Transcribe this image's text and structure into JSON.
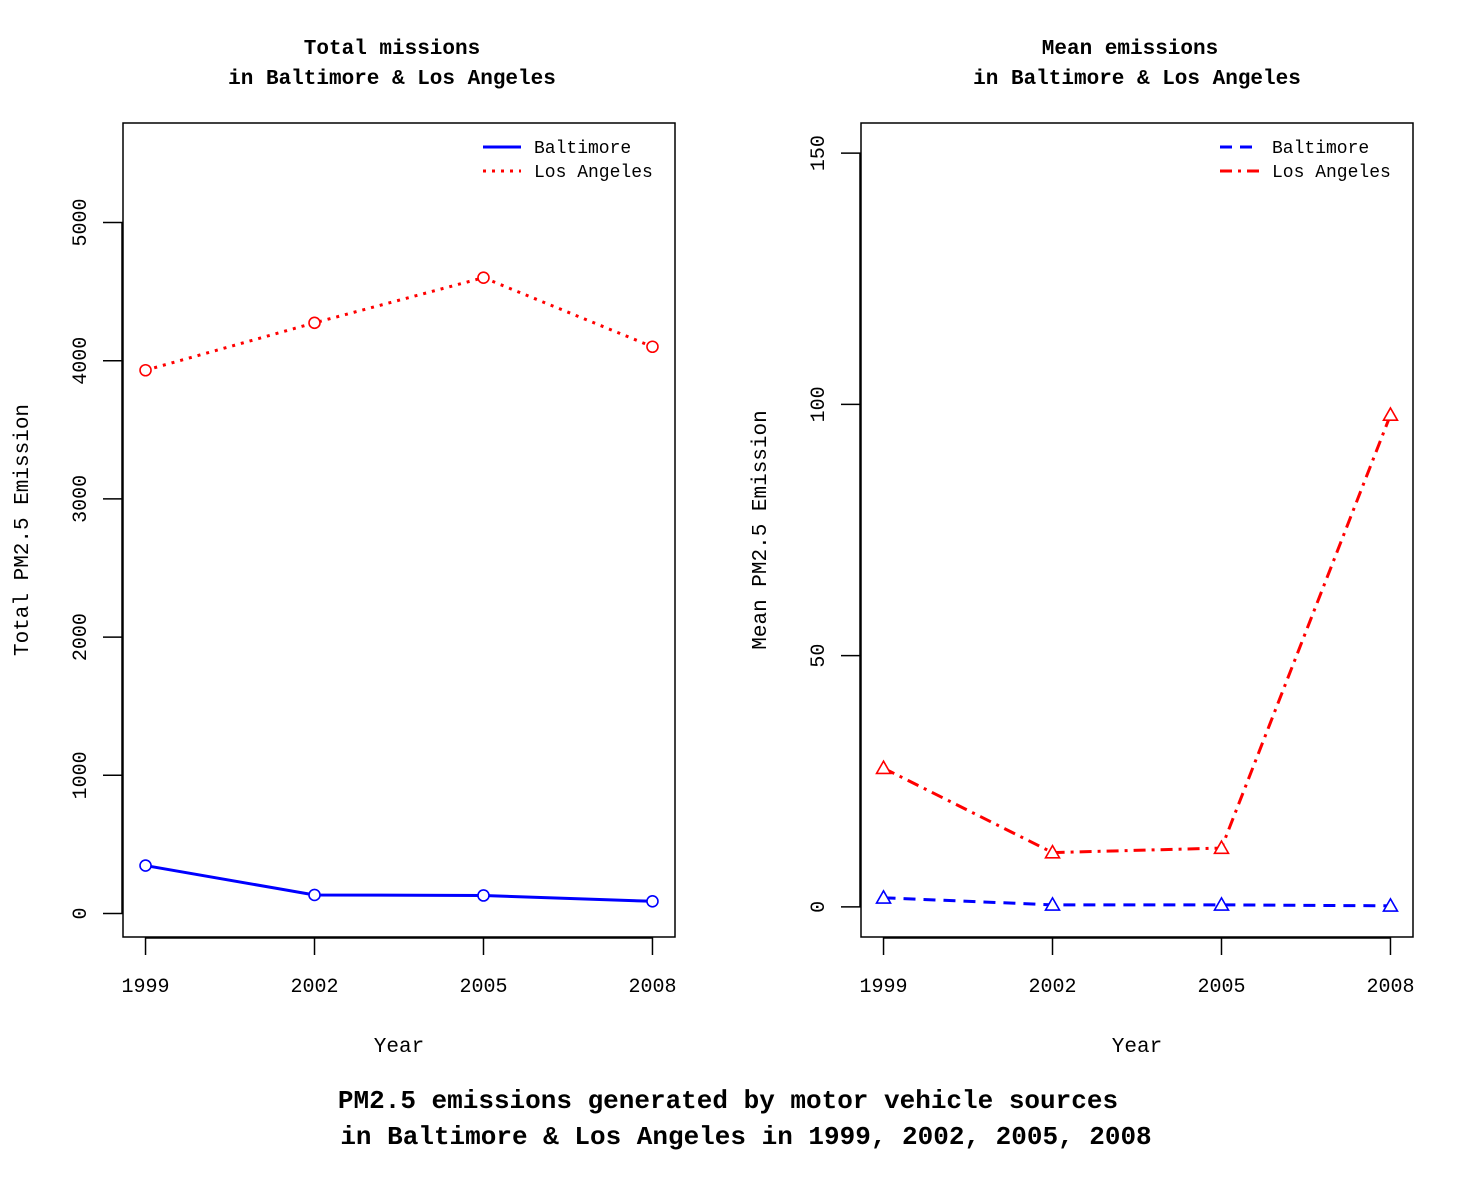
{
  "suptitle": {
    "line1": "PM2.5 emissions generated by motor vehicle sources",
    "line2": "in Baltimore & Los Angeles in 1999, 2002, 2005, 2008"
  },
  "chart_data": [
    {
      "type": "line",
      "title_line1": "Total missions",
      "title_line2": "in Baltimore & Los Angeles",
      "xlabel": "Year",
      "ylabel": "Total PM2.5 Emission",
      "x": [
        1999,
        2002,
        2005,
        2008
      ],
      "x_tick_labels": [
        "1999",
        "2002",
        "2005",
        "2008"
      ],
      "xlim": [
        1998.6,
        2008.4
      ],
      "y_ticks": [
        0,
        1000,
        2000,
        3000,
        4000,
        5000
      ],
      "y_tick_labels": [
        "0",
        "1000",
        "2000",
        "3000",
        "4000",
        "5000"
      ],
      "ylim": [
        -170,
        5720
      ],
      "grid": false,
      "legend_position": "top-right",
      "series": [
        {
          "name": "Baltimore",
          "values": [
            346.8,
            134.3,
            130.4,
            88.3
          ],
          "color": "#0000ff",
          "line_style": "solid",
          "marker": "circle"
        },
        {
          "name": "Los Angeles",
          "values": [
            3931,
            4274,
            4601,
            4101
          ],
          "color": "#ff0000",
          "line_style": "dotted",
          "marker": "circle"
        }
      ]
    },
    {
      "type": "line",
      "title_line1": "Mean emissions",
      "title_line2": "in Baltimore & Los Angeles",
      "xlabel": "Year",
      "ylabel": "Mean PM2.5 Emission",
      "x": [
        1999,
        2002,
        2005,
        2008
      ],
      "x_tick_labels": [
        "1999",
        "2002",
        "2005",
        "2008"
      ],
      "xlim": [
        1998.6,
        2008.4
      ],
      "y_ticks": [
        0,
        50,
        100,
        150
      ],
      "y_tick_labels": [
        "0",
        "50",
        "100",
        "150"
      ],
      "ylim": [
        -6,
        156
      ],
      "grid": false,
      "legend_position": "top-right",
      "series": [
        {
          "name": "Baltimore",
          "values": [
            1.8,
            0.4,
            0.4,
            0.2
          ],
          "color": "#0000ff",
          "line_style": "dashed",
          "marker": "triangle"
        },
        {
          "name": "Los Angeles",
          "values": [
            27.6,
            10.8,
            11.7,
            97.9
          ],
          "color": "#ff0000",
          "line_style": "dashdot",
          "marker": "triangle"
        }
      ]
    }
  ]
}
